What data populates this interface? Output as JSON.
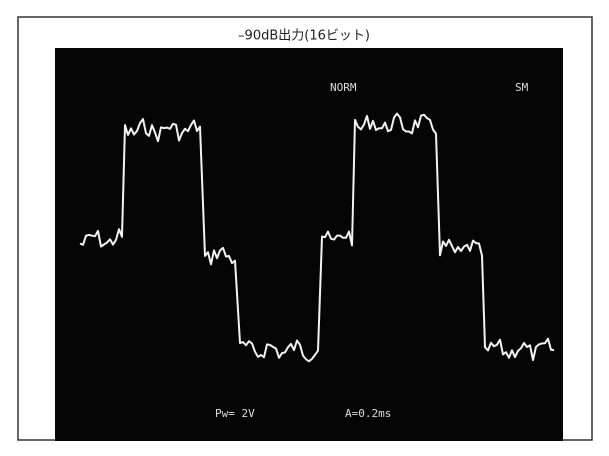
{
  "caption": "–90dB出力(16ビット)",
  "screen": {
    "mode": "NORM",
    "corner": "SM",
    "volts": "Pw= 2V",
    "time": "A=0.2ms"
  }
}
